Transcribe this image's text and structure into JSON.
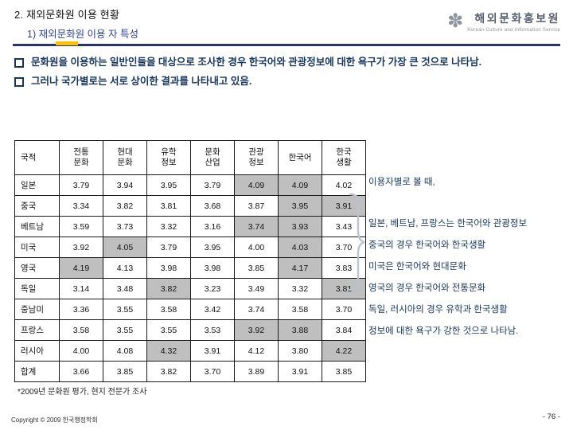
{
  "slide": {
    "title": "2. 재외문화원 이용 현황",
    "subtitle": "1) 재외문화원 이용 자 특성"
  },
  "logo": {
    "icon": "flower-asterisk",
    "name": "해외문화홍보원",
    "tagline": "Korean Culture and Information Service"
  },
  "bullets": [
    "문화원을 이용하는 일반인들을 대상으로 조사한 경우 한국어와 관광정보에 대한 욕구가 가장 큰 것으로 나타남.",
    "그러나 국가별로는 서로 상이한 결과를 나타내고 있음."
  ],
  "table": {
    "columns": [
      "국적",
      "전통\n문화",
      "현대\n문화",
      "유학\n정보",
      "문화\n산업",
      "관광\n정보",
      "한국어",
      "한국\n생활"
    ],
    "rows": [
      {
        "label": "일본",
        "values": [
          "3.79",
          "3.94",
          "3.95",
          "3.79",
          "4.09",
          "4.09",
          "4.02"
        ],
        "highlight": [
          4,
          5
        ]
      },
      {
        "label": "중국",
        "values": [
          "3.34",
          "3.82",
          "3.81",
          "3.68",
          "3.87",
          "3.95",
          "3.91"
        ],
        "highlight": [
          5,
          6
        ]
      },
      {
        "label": "베트남",
        "values": [
          "3.59",
          "3.73",
          "3.32",
          "3.16",
          "3.74",
          "3.93",
          "3.43"
        ],
        "highlight": [
          4,
          5
        ]
      },
      {
        "label": "미국",
        "values": [
          "3.92",
          "4.05",
          "3.79",
          "3.95",
          "4.00",
          "4.03",
          "3.70"
        ],
        "highlight": [
          1,
          5
        ]
      },
      {
        "label": "영국",
        "values": [
          "4.19",
          "4.13",
          "3.98",
          "3.98",
          "3.85",
          "4.17",
          "3.83"
        ],
        "highlight": [
          0,
          5
        ]
      },
      {
        "label": "독일",
        "values": [
          "3.14",
          "3.48",
          "3.82",
          "3.23",
          "3.49",
          "3.32",
          "3.81"
        ],
        "highlight": [
          2,
          6
        ]
      },
      {
        "label": "중남미",
        "values": [
          "3.36",
          "3.55",
          "3.58",
          "3.42",
          "3.74",
          "3.58",
          "3.70"
        ],
        "highlight": []
      },
      {
        "label": "프랑스",
        "values": [
          "3.58",
          "3.55",
          "3.55",
          "3.53",
          "3.92",
          "3.88",
          "3.84"
        ],
        "highlight": [
          4,
          5
        ]
      },
      {
        "label": "러시아",
        "values": [
          "4.00",
          "4.08",
          "4.32",
          "3.91",
          "4.12",
          "3.80",
          "4.22"
        ],
        "highlight": [
          2,
          6
        ]
      },
      {
        "label": "합계",
        "values": [
          "3.66",
          "3.85",
          "3.82",
          "3.70",
          "3.89",
          "3.91",
          "3.85"
        ],
        "highlight": []
      }
    ],
    "highlight_color": "#bfbfbf"
  },
  "annotations": [
    "이용자별로 볼 때,",
    "일본, 베트남, 프랑스는 한국어와 관광정보",
    "중국의 경우 한국어와 한국생활",
    "미국은 한국어와 현대문화",
    "영국의 경우 한국어와 전통문화",
    "독일, 러시아의 경우 유학과 한국생활",
    "정보에 대한 욕구가 강한 것으로 나타남."
  ],
  "footnote": "*2009년 문화원 평가, 현지 전문가 조사",
  "footer": {
    "copyright": "Copyright © 2009 한국행정학회",
    "page": "- 76 -"
  },
  "colors": {
    "accent_navy": "#26356f",
    "accent_gold": "#ffc000",
    "subtitle_blue": "#2f3f9e",
    "bullet_navy": "#17365d",
    "highlight_gray": "#bfbfbf"
  }
}
